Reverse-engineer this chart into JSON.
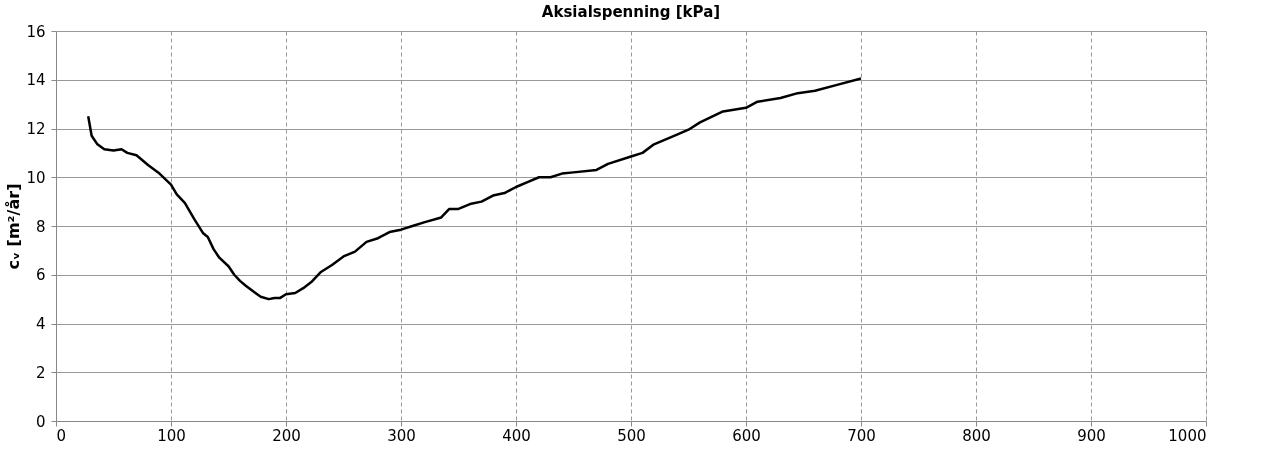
{
  "chart_data": {
    "type": "line",
    "title": "Aksialspenning [kPa]",
    "ylabel": "cᵥ [m²/år]",
    "x": [
      28,
      31,
      36,
      42,
      50,
      57,
      62,
      70,
      80,
      90,
      100,
      105,
      112,
      120,
      128,
      132,
      137,
      142,
      150,
      155,
      160,
      165,
      172,
      178,
      185,
      190,
      195,
      200,
      208,
      215,
      222,
      230,
      240,
      250,
      260,
      270,
      280,
      290,
      300,
      310,
      320,
      335,
      342,
      350,
      360,
      370,
      380,
      390,
      400,
      410,
      420,
      430,
      440,
      450,
      470,
      480,
      500,
      510,
      520,
      540,
      550,
      560,
      580,
      600,
      610,
      630,
      645,
      660,
      680,
      700
    ],
    "series": [
      {
        "color": "#000000",
        "values": [
          12.5,
          11.7,
          11.35,
          11.15,
          11.1,
          11.15,
          11.0,
          10.9,
          10.5,
          10.15,
          9.7,
          9.3,
          8.95,
          8.3,
          7.7,
          7.55,
          7.05,
          6.7,
          6.35,
          6.0,
          5.75,
          5.55,
          5.3,
          5.1,
          5.0,
          5.05,
          5.05,
          5.2,
          5.25,
          5.45,
          5.7,
          6.1,
          6.4,
          6.75,
          6.95,
          7.35,
          7.5,
          7.75,
          7.85,
          8.0,
          8.15,
          8.35,
          8.7,
          8.7,
          8.9,
          9.0,
          9.25,
          9.35,
          9.6,
          9.8,
          10.0,
          10.0,
          10.15,
          10.2,
          10.3,
          10.55,
          10.85,
          11.0,
          11.35,
          11.75,
          11.95,
          12.25,
          12.7,
          12.85,
          13.1,
          13.25,
          13.45,
          13.55,
          13.8,
          14.05
        ]
      }
    ],
    "xlim": [
      0,
      1000
    ],
    "xticks": [
      0,
      100,
      200,
      300,
      400,
      500,
      600,
      700,
      800,
      900,
      1000
    ],
    "ylim": [
      0,
      16
    ],
    "yticks": [
      0,
      2,
      4,
      6,
      8,
      10,
      12,
      14,
      16
    ],
    "grid": true,
    "marker": "none",
    "line_style": "solid"
  }
}
